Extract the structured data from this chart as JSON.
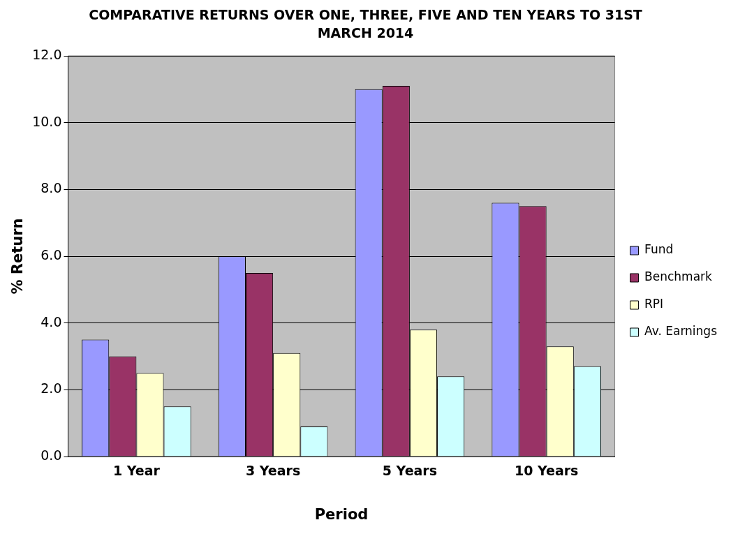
{
  "chart_data": {
    "type": "bar",
    "title": "COMPARATIVE RETURNS OVER ONE, THREE, FIVE AND TEN YEARS TO 31ST MARCH 2014",
    "xlabel": "Period",
    "ylabel": "% Return",
    "categories": [
      "1 Year",
      "3 Years",
      "5 Years",
      "10 Years"
    ],
    "series": [
      {
        "name": "Fund",
        "color": "#9999ff",
        "values": [
          3.5,
          6.0,
          11.0,
          7.6
        ]
      },
      {
        "name": "Benchmark",
        "color": "#993366",
        "values": [
          3.0,
          5.5,
          11.1,
          7.5
        ]
      },
      {
        "name": "RPI",
        "color": "#ffffcc",
        "values": [
          2.5,
          3.1,
          3.8,
          3.3
        ]
      },
      {
        "name": "Av. Earnings",
        "color": "#ccffff",
        "values": [
          1.5,
          0.9,
          2.4,
          2.7
        ]
      }
    ],
    "ylim": [
      0,
      12
    ],
    "yticks": [
      {
        "value": 0,
        "label": "0.0"
      },
      {
        "value": 2,
        "label": "2.0"
      },
      {
        "value": 4,
        "label": "4.0"
      },
      {
        "value": 6,
        "label": "6.0"
      },
      {
        "value": 8,
        "label": "8.0"
      },
      {
        "value": 10,
        "label": "10.0"
      },
      {
        "value": 12,
        "label": "12.0"
      }
    ],
    "grid": "y",
    "legend": "right"
  }
}
